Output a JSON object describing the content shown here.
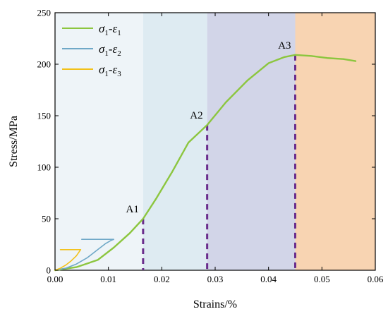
{
  "chart_data": {
    "type": "line",
    "xlabel": "Strains/%",
    "ylabel": "Stress/MPa",
    "xlim": [
      0,
      0.06
    ],
    "ylim": [
      0,
      250
    ],
    "x_ticks": [
      "0.00",
      "0.01",
      "0.02",
      "0.03",
      "0.04",
      "0.05",
      "0.06"
    ],
    "y_ticks": [
      "0",
      "50",
      "100",
      "150",
      "200",
      "250"
    ],
    "grid": false,
    "legend_position": "top-left",
    "series": [
      {
        "name": "σ1-ε1",
        "color": "#8cc63f",
        "x": [
          0.0,
          0.004,
          0.008,
          0.011,
          0.014,
          0.0165,
          0.019,
          0.022,
          0.025,
          0.0285,
          0.032,
          0.036,
          0.04,
          0.043,
          0.045,
          0.048,
          0.051,
          0.054,
          0.0563
        ],
        "y": [
          0,
          3,
          10,
          22,
          36,
          50,
          70,
          96,
          124,
          141,
          163,
          184,
          201,
          207,
          209,
          208,
          206,
          205,
          203
        ]
      },
      {
        "name": "σ1-ε2",
        "color": "#6fa8c7",
        "x": [
          0.0,
          0.002,
          0.004,
          0.006,
          0.008,
          0.0095,
          0.0105,
          0.011,
          0.0095,
          0.005
        ],
        "y": [
          0,
          2,
          6,
          12,
          20,
          26,
          29,
          30,
          30,
          30
        ]
      },
      {
        "name": "σ1-ε3",
        "color": "#f2c11a",
        "x": [
          0.0,
          0.001,
          0.002,
          0.003,
          0.004,
          0.0048,
          0.0035,
          0.001
        ],
        "y": [
          0,
          2,
          5,
          9,
          14,
          20,
          20,
          20
        ]
      }
    ],
    "regions": [
      {
        "from": 0.0,
        "to": 0.0165,
        "color": "#eef4f8"
      },
      {
        "from": 0.0165,
        "to": 0.0285,
        "color": "#deebf2"
      },
      {
        "from": 0.0285,
        "to": 0.045,
        "color": "#d2d5e8"
      },
      {
        "from": 0.045,
        "to": 0.06,
        "color": "#f8d4b2"
      }
    ],
    "markers": [
      {
        "label": "A1",
        "x": 0.0165,
        "y": 50
      },
      {
        "label": "A2",
        "x": 0.0285,
        "y": 141
      },
      {
        "label": "A3",
        "x": 0.045,
        "y": 209
      }
    ],
    "marker_color": "#6a2c8c"
  }
}
